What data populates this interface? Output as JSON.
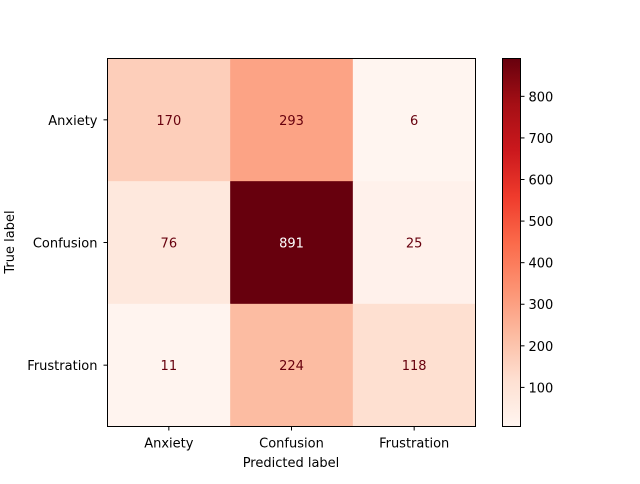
{
  "chart_data": {
    "type": "heatmap",
    "title": "",
    "xlabel": "Predicted label",
    "ylabel": "True label",
    "x_categories": [
      "Anxiety",
      "Confusion",
      "Frustration"
    ],
    "y_categories": [
      "Anxiety",
      "Confusion",
      "Frustration"
    ],
    "values": [
      [
        170,
        293,
        6
      ],
      [
        76,
        891,
        25
      ],
      [
        11,
        224,
        118
      ]
    ],
    "colormap": "Reds",
    "colorbar": {
      "min": 6,
      "max": 891,
      "ticks": [
        100,
        200,
        300,
        400,
        500,
        600,
        700,
        800
      ]
    },
    "cell_text_colors": {
      "low": "#67000d",
      "high": "#ffffff"
    },
    "grid": false,
    "legend": "colorbar-right"
  }
}
